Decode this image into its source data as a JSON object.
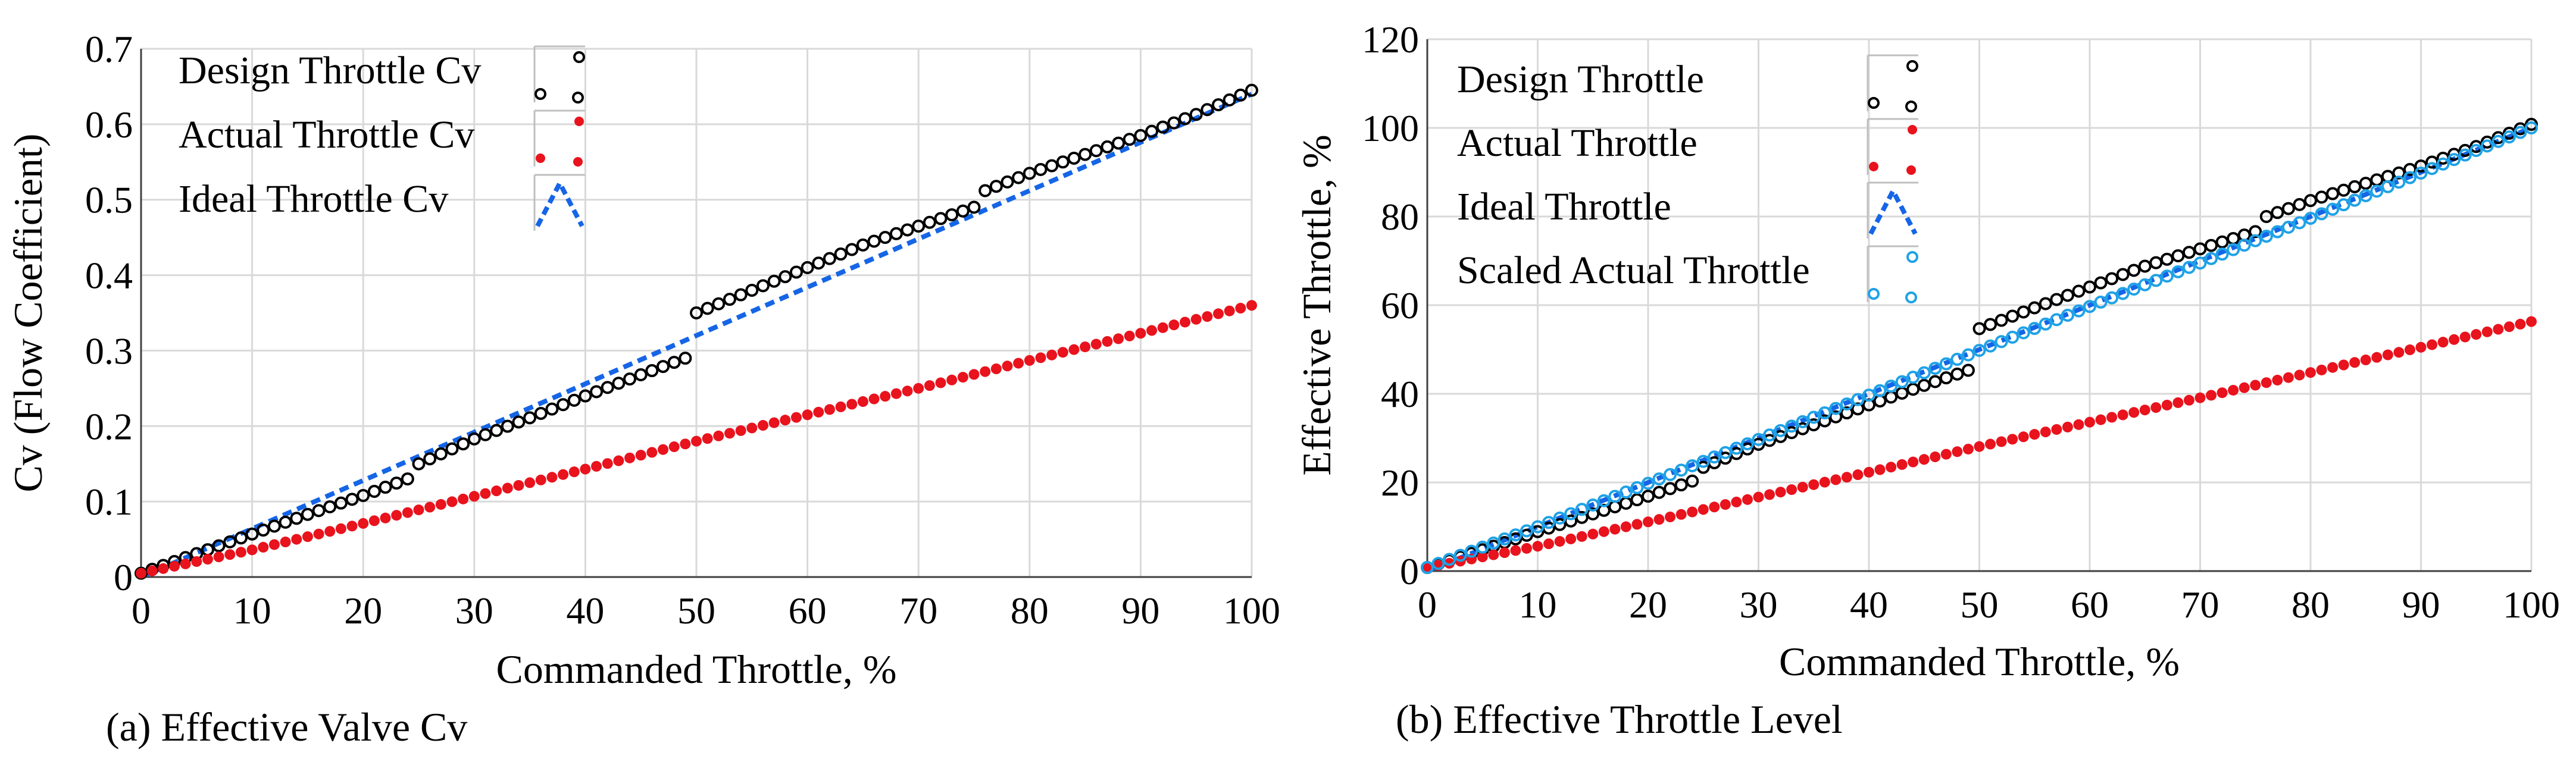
{
  "chart_data": [
    {
      "type": "scatter",
      "caption": "(a) Effective Valve Cv",
      "xlabel": "Commanded Throttle, %",
      "ylabel": "Cv (Flow Coefficient)",
      "xlim": [
        0,
        100
      ],
      "ylim": [
        0,
        0.7
      ],
      "xticks": [
        "0",
        "10",
        "20",
        "30",
        "40",
        "50",
        "60",
        "70",
        "80",
        "90",
        "100"
      ],
      "yticks": [
        "0",
        "0.1",
        "0.2",
        "0.3",
        "0.4",
        "0.5",
        "0.6",
        "0.7"
      ],
      "grid": true,
      "legend_position": "top-left",
      "series": [
        {
          "name": "Design Throttle Cv",
          "marker": "open-circle",
          "color": "#000000",
          "x": [
            0,
            5,
            10,
            15,
            20,
            24,
            25,
            30,
            35,
            40,
            45,
            49,
            50,
            55,
            60,
            65,
            70,
            75,
            76,
            80,
            85,
            90,
            95,
            100
          ],
          "y": [
            0.005,
            0.031,
            0.057,
            0.083,
            0.108,
            0.13,
            0.15,
            0.183,
            0.211,
            0.24,
            0.268,
            0.29,
            0.35,
            0.38,
            0.41,
            0.44,
            0.465,
            0.49,
            0.512,
            0.535,
            0.56,
            0.585,
            0.613,
            0.645
          ]
        },
        {
          "name": "Actual Throttle Cv",
          "marker": "filled-circle",
          "color": "#e8131d",
          "x": [
            0,
            10,
            20,
            30,
            40,
            50,
            60,
            70,
            80,
            90,
            100
          ],
          "y": [
            0.005,
            0.036,
            0.071,
            0.107,
            0.143,
            0.18,
            0.215,
            0.25,
            0.287,
            0.323,
            0.36
          ]
        },
        {
          "name": "Ideal Throttle Cv",
          "marker": "dashed-line",
          "color": "#1565e6",
          "x": [
            0,
            100
          ],
          "y": [
            0.0,
            0.64
          ]
        }
      ]
    },
    {
      "type": "scatter",
      "caption": "(b) Effective Throttle Level",
      "xlabel": "Commanded Throttle, %",
      "ylabel": "Effective Throttle, %",
      "xlim": [
        0,
        100
      ],
      "ylim": [
        0,
        120
      ],
      "xticks": [
        "0",
        "10",
        "20",
        "30",
        "40",
        "50",
        "60",
        "70",
        "80",
        "90",
        "100"
      ],
      "yticks": [
        "0",
        "20",
        "40",
        "60",
        "80",
        "100",
        "120"
      ],
      "grid": true,
      "legend_position": "top-left",
      "series": [
        {
          "name": "Design Throttle",
          "marker": "open-circle",
          "color": "#000000",
          "x": [
            0,
            5,
            10,
            15,
            20,
            24,
            25,
            30,
            35,
            40,
            45,
            49,
            50,
            55,
            60,
            65,
            70,
            75,
            76,
            80,
            85,
            90,
            95,
            100
          ],
          "y": [
            0.8,
            4.8,
            8.9,
            12.9,
            16.9,
            20.3,
            23.4,
            28.6,
            33.0,
            37.5,
            41.9,
            45.3,
            54.7,
            59.4,
            64.1,
            68.8,
            72.7,
            76.6,
            80.0,
            83.6,
            87.5,
            91.4,
            95.8,
            100.8
          ]
        },
        {
          "name": "Actual Throttle",
          "marker": "filled-circle",
          "color": "#e8131d",
          "x": [
            0,
            10,
            20,
            30,
            40,
            50,
            60,
            70,
            80,
            90,
            100
          ],
          "y": [
            0.8,
            5.6,
            11.1,
            16.7,
            22.3,
            28.1,
            33.6,
            39.1,
            44.8,
            50.5,
            56.3
          ]
        },
        {
          "name": "Ideal Throttle",
          "marker": "dashed-line",
          "color": "#1565e6",
          "x": [
            0,
            100
          ],
          "y": [
            0.0,
            100.0
          ]
        },
        {
          "name": "Scaled Actual Throttle",
          "marker": "open-circle",
          "color": "#1fa2e6",
          "x": [
            0,
            10,
            20,
            30,
            40,
            50,
            60,
            70,
            80,
            90,
            100
          ],
          "y": [
            0.8,
            10.0,
            19.8,
            29.7,
            39.7,
            49.8,
            59.7,
            69.5,
            79.6,
            89.8,
            100.0
          ]
        }
      ]
    }
  ]
}
